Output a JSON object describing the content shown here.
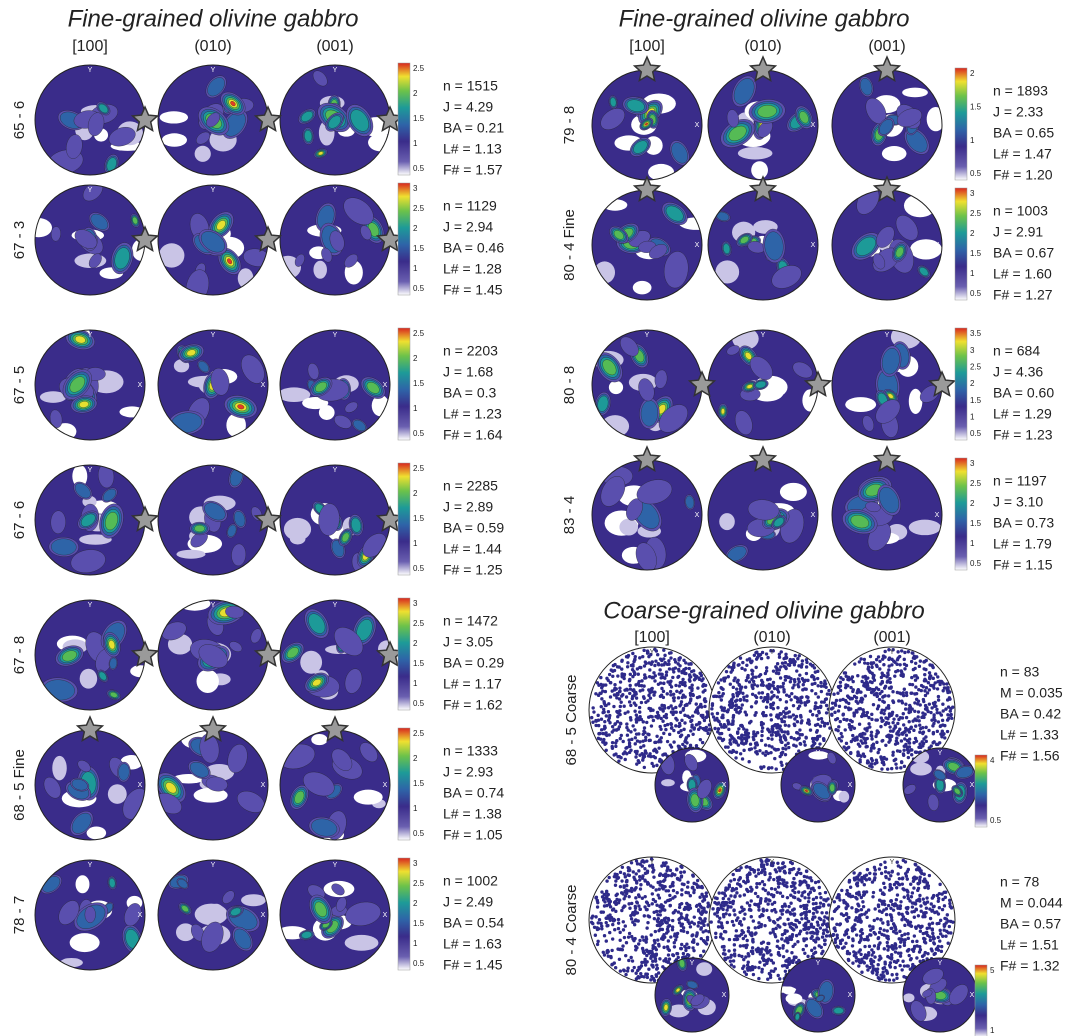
{
  "left_section": {
    "title": "Fine-grained olivine gabbro",
    "columns": [
      "[100]",
      "(010)",
      "(001)"
    ],
    "rows": [
      {
        "label": "65 - 6",
        "colorbar_labels": [
          "0.5",
          "1",
          "1.5",
          "2",
          "2.5"
        ],
        "stats": [
          "n = 1515",
          "J = 4.29",
          "BA = 0.21",
          "L# = 1.13",
          "F# = 1.57"
        ]
      },
      {
        "label": "67 - 3",
        "colorbar_labels": [
          "0.5",
          "1",
          "1.5",
          "2",
          "2.5",
          "3"
        ],
        "stats": [
          "n = 1129",
          "J = 2.94",
          "BA = 0.46",
          "L# = 1.28",
          "F# = 1.45"
        ]
      },
      {
        "label": "67 - 5",
        "colorbar_labels": [
          "0.5",
          "1",
          "1.5",
          "2",
          "2.5"
        ],
        "stats": [
          "n = 2203",
          "J = 1.68",
          "BA = 0.3",
          "L# = 1.23",
          "F# = 1.64"
        ]
      },
      {
        "label": "67 - 6",
        "colorbar_labels": [
          "0.5",
          "1",
          "1.5",
          "2",
          "2.5"
        ],
        "stats": [
          "n = 2285",
          "J = 2.89",
          "BA = 0.59",
          "L# = 1.44",
          "F# = 1.25"
        ]
      },
      {
        "label": "67 - 8",
        "colorbar_labels": [
          "0.5",
          "1",
          "1.5",
          "2",
          "2.5",
          "3"
        ],
        "stats": [
          "n = 1472",
          "J = 3.05",
          "BA = 0.29",
          "L# = 1.17",
          "F# = 1.62"
        ]
      },
      {
        "label": "68 - 5 Fine",
        "colorbar_labels": [
          "0.5",
          "1",
          "1.5",
          "2",
          "2.5"
        ],
        "stats": [
          "n = 1333",
          "J = 2.93",
          "BA = 0.74",
          "L# = 1.38",
          "F# = 1.05"
        ]
      },
      {
        "label": "78 - 7",
        "colorbar_labels": [
          "0.5",
          "1",
          "1.5",
          "2",
          "2.5",
          "3"
        ],
        "stats": [
          "n = 1002",
          "J = 2.49",
          "BA = 0.54",
          "L# = 1.63",
          "F# = 1.45"
        ]
      }
    ]
  },
  "right_section": {
    "title": "Fine-grained olivine gabbro",
    "columns": [
      "[100]",
      "(010)",
      "(001)"
    ],
    "rows": [
      {
        "label": "79 - 8",
        "colorbar_labels": [
          "0.5",
          "1",
          "1.5",
          "2"
        ],
        "stats": [
          "n = 1893",
          "J = 2.33",
          "BA = 0.65",
          "L# = 1.47",
          "F# = 1.20"
        ]
      },
      {
        "label": "80 - 4 Fine",
        "colorbar_labels": [
          "0.5",
          "1",
          "1.5",
          "2",
          "2.5",
          "3"
        ],
        "stats": [
          "n = 1003",
          "J = 2.91",
          "BA = 0.67",
          "L# = 1.60",
          "F# = 1.27"
        ]
      },
      {
        "label": "80 - 8",
        "colorbar_labels": [
          "0.5",
          "1",
          "1.5",
          "2",
          "2.5",
          "3",
          "3.5"
        ],
        "stats": [
          "n = 684",
          "J = 4.36",
          "BA = 0.60",
          "L# = 1.29",
          "F# = 1.23"
        ]
      },
      {
        "label": "83 - 4",
        "colorbar_labels": [
          "0.5",
          "1",
          "1.5",
          "2",
          "2.5",
          "3"
        ],
        "stats": [
          "n = 1197",
          "J = 3.10",
          "BA = 0.73",
          "L# = 1.79",
          "F# = 1.15"
        ]
      }
    ]
  },
  "coarse_section": {
    "title": "Coarse-grained olivine gabbro",
    "columns": [
      "[100]",
      "(010)",
      "(001)"
    ],
    "rows": [
      {
        "label": "68 - 5 Coarse",
        "colorbar_labels": [
          "0.5",
          "4"
        ],
        "stats": [
          "n = 83",
          "M = 0.035",
          "BA = 0.42",
          "L# = 1.33",
          "F# = 1.56"
        ]
      },
      {
        "label": "80 - 4 Coarse",
        "colorbar_labels": [
          "1",
          "5"
        ],
        "stats": [
          "n = 78",
          "M = 0.044",
          "BA = 0.57",
          "L# = 1.51",
          "F# = 1.32"
        ]
      }
    ]
  },
  "axis_labels": {
    "y": "Y",
    "x": "X"
  }
}
